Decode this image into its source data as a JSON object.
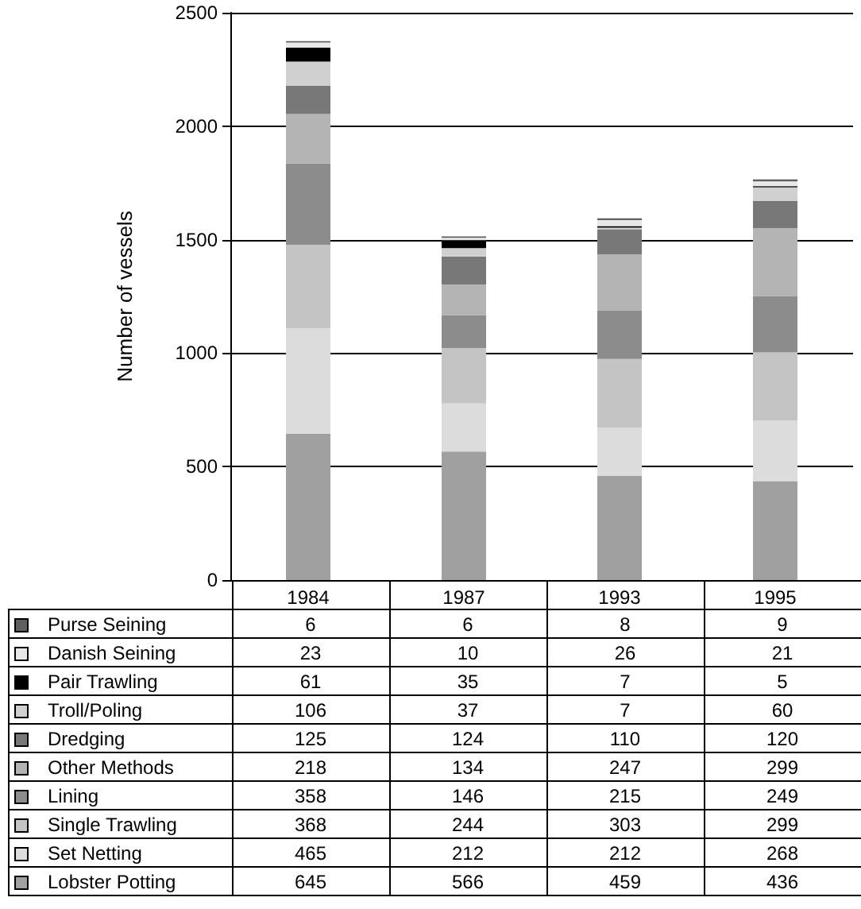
{
  "chart_data": {
    "type": "bar",
    "stacked": true,
    "ylabel": "Number of vessels",
    "categories": [
      "1984",
      "1987",
      "1993",
      "1995"
    ],
    "ylim": [
      0,
      2500
    ],
    "yticks": [
      0,
      500,
      1000,
      1500,
      2000,
      2500
    ],
    "grid": "y",
    "legend": "bottom",
    "data_labels": true,
    "series": [
      {
        "name": "Lobster Potting",
        "color": "#a0a0a0",
        "values": [
          645,
          566,
          459,
          436
        ]
      },
      {
        "name": "Set Netting",
        "color": "#dcdcdc",
        "values": [
          465,
          212,
          212,
          268
        ]
      },
      {
        "name": "Single Trawling",
        "color": "#c4c4c4",
        "values": [
          368,
          244,
          303,
          299
        ]
      },
      {
        "name": "Lining",
        "color": "#8c8c8c",
        "values": [
          358,
          146,
          215,
          249
        ]
      },
      {
        "name": "Other Methods",
        "color": "#b4b4b4",
        "values": [
          218,
          134,
          247,
          299
        ]
      },
      {
        "name": "Dredging",
        "color": "#787878",
        "values": [
          125,
          124,
          110,
          120
        ]
      },
      {
        "name": "Troll/Poling",
        "color": "#d0d0d0",
        "values": [
          106,
          37,
          7,
          60
        ]
      },
      {
        "name": "Pair Trawling",
        "color": "#000000",
        "values": [
          61,
          35,
          7,
          5
        ]
      },
      {
        "name": "Danish Seining",
        "color": "#e8e8e8",
        "values": [
          23,
          10,
          26,
          21
        ]
      },
      {
        "name": "Purse Seining",
        "color": "#606060",
        "values": [
          6,
          6,
          8,
          9
        ]
      }
    ]
  }
}
